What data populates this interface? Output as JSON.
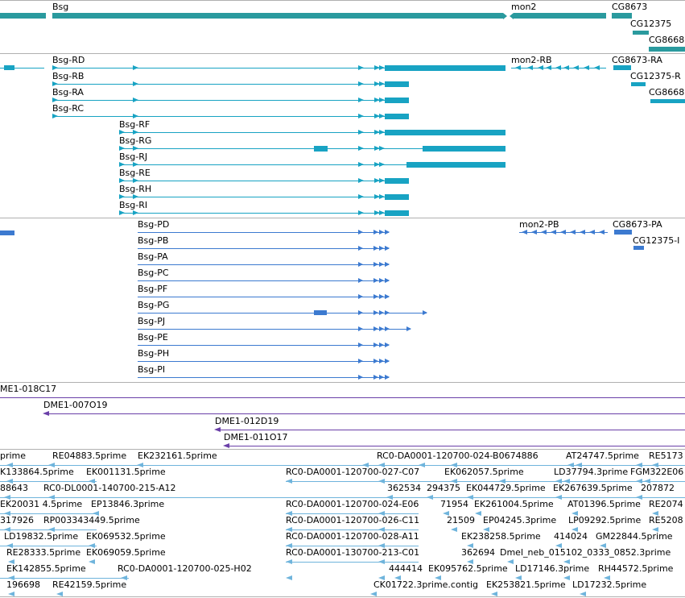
{
  "colors": {
    "gene": "#2a9a9e",
    "rna": "#18a3c3",
    "protein": "#3c7ad0",
    "clone": "#6a3fa8",
    "est": "#6fb4dc",
    "separator": "#b0b0b0"
  },
  "gene_track": {
    "labels": [
      "Bsg",
      "mon2",
      "CG8673",
      "CG12375",
      "CG8668"
    ]
  },
  "rna_track": {
    "labels": [
      "Bsg-RD",
      "Bsg-RB",
      "Bsg-RA",
      "Bsg-RC",
      "Bsg-RF",
      "Bsg-RG",
      "Bsg-RJ",
      "Bsg-RE",
      "Bsg-RH",
      "Bsg-RI",
      "mon2-RB",
      "CG8673-RA",
      "CG12375-R",
      "CG8668"
    ]
  },
  "protein_track": {
    "labels": [
      "Bsg-PD",
      "Bsg-PB",
      "Bsg-PA",
      "Bsg-PC",
      "Bsg-PF",
      "Bsg-PG",
      "Bsg-PJ",
      "Bsg-PE",
      "Bsg-PH",
      "Bsg-PI",
      "mon2-PB",
      "CG8673-PA",
      "CG12375-I"
    ]
  },
  "clone_track": {
    "labels": [
      "ME1-018C17",
      "DME1-007O19",
      "DME1-012D19",
      "DME1-011O17"
    ]
  },
  "est_track": {
    "labels": [
      "prime",
      "RE04883.5prime",
      "EK232161.5prime",
      "RC0-DA0001-120700-024-B0674886",
      "AT24747.5prime",
      "RE5173",
      "K133864.5prime",
      "EK001131.5prime",
      "RC0-DA0001-120700-027-C07",
      "EK062057.5prime",
      "LD37794.3prime",
      "FGM322E06",
      "88643",
      "RC0-DL0001-140700-215-A12",
      "362534",
      "294375",
      "EK044729.5prime",
      "EK267639.5prime",
      "207872",
      "EK20031 4.5prime",
      "EP13846.3prime",
      "RC0-DA0001-120700-024-E06",
      "71954",
      "EK261004.5prime",
      "AT01396.5prime",
      "RE2074",
      "317926",
      "RP003343449.5prime",
      "RC0-DA0001-120700-026-C11",
      "21509",
      "EP04245.3prime",
      "LP09292.5prime",
      "RE5208",
      "LD19832.5prime",
      "EK069532.5prime",
      "RC0-DA0001-120700-028-A11",
      "EK238258.5prime",
      "414024",
      "GM22844.5prime",
      "RE28333.5prime",
      "EK069059.5prime",
      "RC0-DA0001-130700-213-C01",
      "362694",
      "Dmel_neb_015102_0333_0852.3prime",
      "EK142855.5prime",
      "RC0-DA0001-120700-025-H02",
      "444414",
      "EK095762.5prime",
      "LD17146.3prime",
      "RH44572.5prime",
      "196698",
      "RE42159.5prime",
      "CK01722.3prime.contig",
      "EK253821.5prime",
      "LD17232.5prime"
    ]
  }
}
